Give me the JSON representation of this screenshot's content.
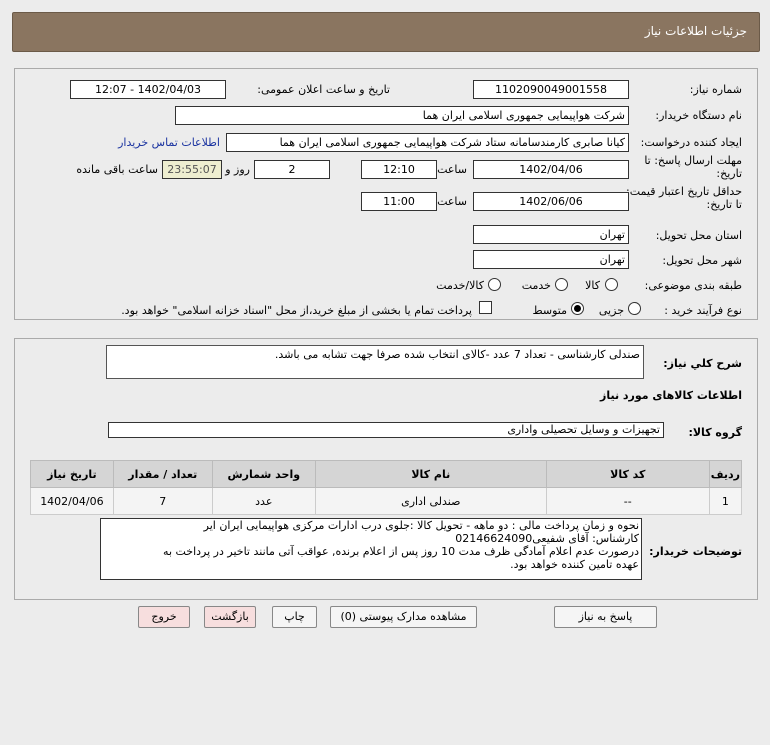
{
  "header": {
    "title": "جزئیات اطلاعات نیاز"
  },
  "fields": {
    "need_number_label": "شماره نیاز:",
    "need_number": "1102090049001558",
    "announce_label": "تاریخ و ساعت اعلان عمومی:",
    "announce_value": "1402/04/03 - 12:07",
    "buyer_label": "نام دستگاه خریدار:",
    "buyer": "شرکت هواپیمایی جمهوری اسلامی ایران هما",
    "creator_label": "ایجاد کننده درخواست:",
    "creator": "کیانا صابری کارمندسامانه ستاد شرکت هواپیمایی جمهوری اسلامی ایران هما",
    "contact_link": "اطلاعات تماس خریدار",
    "deadline_label": "مهلت ارسال پاسخ: تا تاریخ:",
    "deadline_date": "1402/04/06",
    "time_label": "ساعت",
    "deadline_time": "12:10",
    "days": "2",
    "days_label": "روز و",
    "remaining": "23:55:07",
    "remaining_label": "ساعت باقی مانده",
    "validity_label": "حداقل تاریخ اعتبار قیمت: تا تاریخ:",
    "validity_date": "1402/06/06",
    "validity_time": "11:00",
    "province_label": "استان محل تحویل:",
    "province": "تهران",
    "city_label": "شهر محل تحویل:",
    "city": "تهران",
    "category_label": "طبقه بندی موضوعی:",
    "category_options": [
      "کالا",
      "خدمت",
      "کالا/خدمت"
    ],
    "process_label": "نوع فرآیند خرید :",
    "process_options": [
      "جزیی",
      "متوسط"
    ],
    "payment_note": "پرداخت تمام یا بخشی از مبلغ خرید،از محل \"اسناد خزانه اسلامی\" خواهد بود."
  },
  "description": {
    "label": "شرح کلي نياز:",
    "text": "صندلی کارشناسی - تعداد 7 عدد -کالای انتخاب شده صرفا جهت تشابه می باشد."
  },
  "goods": {
    "section_title": "اطلاعات کالاهای مورد نیاز",
    "group_label": "گروه کالا:",
    "group": "تجهیزات و وسایل تحصیلی واداری",
    "columns": [
      "ردیف",
      "کد کالا",
      "نام کالا",
      "واحد شمارش",
      "تعداد / مقدار",
      "تاریخ نیاز"
    ],
    "rows": [
      [
        "1",
        "--",
        "صندلی اداری",
        "عدد",
        "7",
        "1402/04/06"
      ]
    ]
  },
  "buyer_notes": {
    "label": "توضیحات خریدار:",
    "lines": [
      "نحوه و زمان پرداخت مالی : دو ماهه - تحویل کالا :جلوی درب ادارات مرکزی هواپیمایی ایران ایر",
      "کارشناس: آقای شفیعی02146624090",
      "درصورت عدم اعلام آمادگی ظرف مدت 10 روز پس از اعلام برنده, عواقب آتی مانند تاخیر در پرداخت به",
      "عهده تامین کننده خواهد بود."
    ]
  },
  "buttons": {
    "reply": "پاسخ به نیاز",
    "attachments": "مشاهده مدارک پیوستی (0)",
    "print": "چاپ",
    "back": "بازگشت",
    "exit": "خروج"
  }
}
